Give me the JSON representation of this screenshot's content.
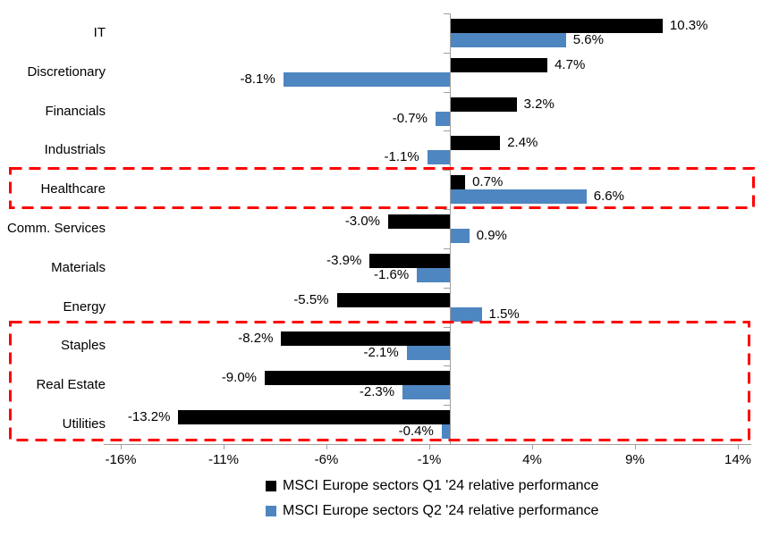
{
  "chart_data": {
    "type": "bar",
    "orientation": "horizontal",
    "title": "",
    "categories": [
      "IT",
      "Discretionary",
      "Financials",
      "Industrials",
      "Healthcare",
      "Comm. Services",
      "Materials",
      "Energy",
      "Staples",
      "Real Estate",
      "Utilities"
    ],
    "series": [
      {
        "name": "MSCI Europe sectors Q1 '24 relative performance",
        "color": "#000000",
        "values": [
          10.3,
          4.7,
          3.2,
          2.4,
          0.7,
          -3.0,
          -3.9,
          -5.5,
          -8.2,
          -9.0,
          -13.2
        ]
      },
      {
        "name": "MSCI Europe sectors Q2 '24 relative performance",
        "color": "#4e86c1",
        "values": [
          5.6,
          -8.1,
          -0.7,
          -1.1,
          6.6,
          0.9,
          -1.6,
          1.5,
          -2.1,
          -2.3,
          -0.4
        ]
      }
    ],
    "value_label_format": "{value}%",
    "xticks": {
      "values": [
        -16,
        -11,
        -6,
        -1,
        4,
        9,
        14
      ],
      "labels": [
        "-16%",
        "-11%",
        "-6%",
        "-1%",
        "4%",
        "9%",
        "14%"
      ]
    },
    "axis_color": "#9f9f9f",
    "grid": false,
    "legend_position": "bottom-center",
    "highlights": [
      {
        "categories": [
          "Healthcare"
        ],
        "color": "#fe0000",
        "style": "dashed"
      },
      {
        "categories": [
          "Staples",
          "Real Estate",
          "Utilities"
        ],
        "color": "#fe0000",
        "style": "dashed"
      }
    ]
  }
}
